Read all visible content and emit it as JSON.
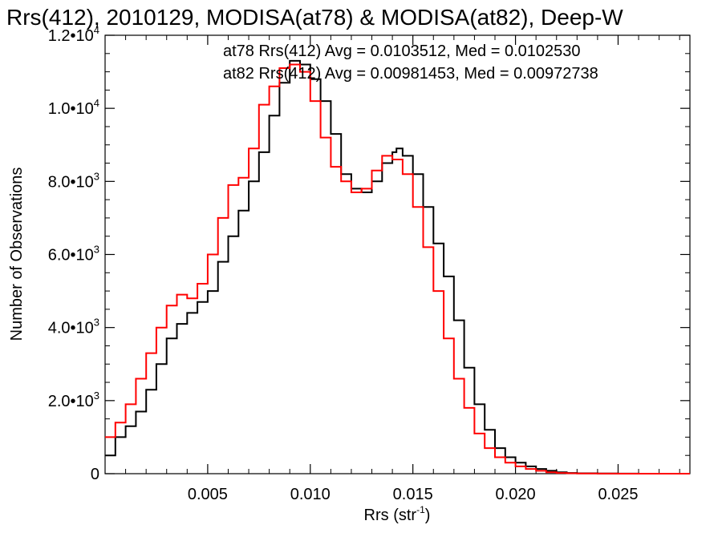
{
  "chart_data": {
    "type": "line",
    "step": true,
    "title": "Rrs(412), 2010129, MODISA(at78) & MODISA(at82), Deep-W",
    "xlabel": "Rrs (str",
    "xlabel_sup": "-1",
    "xlabel_suffix": ")",
    "ylabel": "Number of Observations",
    "xlim": [
      0.0,
      0.0285
    ],
    "ylim": [
      0,
      12000
    ],
    "x_ticks": [
      {
        "value": 0.005,
        "label": "0.005"
      },
      {
        "value": 0.01,
        "label": "0.010"
      },
      {
        "value": 0.015,
        "label": "0.015"
      },
      {
        "value": 0.02,
        "label": "0.020"
      },
      {
        "value": 0.025,
        "label": "0.025"
      }
    ],
    "y_ticks": [
      {
        "value": 0,
        "label": "0",
        "exp": ""
      },
      {
        "value": 2000,
        "label": "2.0•10",
        "exp": "3"
      },
      {
        "value": 4000,
        "label": "4.0•10",
        "exp": "3"
      },
      {
        "value": 6000,
        "label": "6.0•10",
        "exp": "3"
      },
      {
        "value": 8000,
        "label": "8.0•10",
        "exp": "3"
      },
      {
        "value": 10000,
        "label": "1.0•10",
        "exp": "4"
      },
      {
        "value": 12000,
        "label": "1.2•10",
        "exp": "4"
      }
    ],
    "annotations": [
      {
        "text": "at78 Rrs(412) Avg = 0.0103512, Med = 0.0102530",
        "color": "#000000"
      },
      {
        "text": "at82 Rrs(412) Avg = 0.00981453, Med = 0.00972738",
        "color": "#ff0000"
      }
    ],
    "series": [
      {
        "color": "#000000",
        "x": [
          0.0,
          0.0005,
          0.001,
          0.0015,
          0.002,
          0.0025,
          0.003,
          0.0035,
          0.004,
          0.0045,
          0.005,
          0.0055,
          0.006,
          0.0065,
          0.007,
          0.0075,
          0.008,
          0.0085,
          0.009,
          0.0095,
          0.01,
          0.0105,
          0.011,
          0.0115,
          0.012,
          0.0125,
          0.013,
          0.0135,
          0.014,
          0.0142,
          0.0145,
          0.015,
          0.0155,
          0.016,
          0.0165,
          0.017,
          0.0175,
          0.018,
          0.0185,
          0.019,
          0.0195,
          0.02,
          0.0205,
          0.021,
          0.0215,
          0.022,
          0.0225,
          0.023,
          0.024,
          0.025,
          0.026,
          0.027,
          0.0285
        ],
        "y": [
          500,
          1000,
          1300,
          1700,
          2300,
          3000,
          3700,
          4100,
          4400,
          4700,
          5000,
          5800,
          6500,
          7200,
          8000,
          8800,
          9800,
          10700,
          11300,
          11200,
          10800,
          10200,
          9300,
          8200,
          7800,
          7700,
          8000,
          8500,
          8800,
          8900,
          8700,
          8200,
          7300,
          6300,
          5400,
          4200,
          2900,
          1900,
          1200,
          700,
          450,
          300,
          200,
          130,
          80,
          40,
          20,
          10,
          5,
          2,
          0,
          0,
          0
        ]
      },
      {
        "color": "#ff0000",
        "x": [
          0.0,
          0.0005,
          0.001,
          0.0015,
          0.002,
          0.0025,
          0.003,
          0.0035,
          0.004,
          0.0045,
          0.005,
          0.0055,
          0.006,
          0.0065,
          0.007,
          0.0075,
          0.008,
          0.0085,
          0.009,
          0.0095,
          0.01,
          0.0105,
          0.011,
          0.0115,
          0.012,
          0.0125,
          0.013,
          0.0135,
          0.014,
          0.0145,
          0.015,
          0.0155,
          0.016,
          0.0165,
          0.017,
          0.0175,
          0.018,
          0.0185,
          0.019,
          0.0195,
          0.02,
          0.0205,
          0.021,
          0.0215,
          0.022,
          0.0225,
          0.023,
          0.024,
          0.025,
          0.026,
          0.0285
        ],
        "y": [
          1000,
          1400,
          1900,
          2600,
          3300,
          4000,
          4600,
          4900,
          4800,
          5200,
          6000,
          7000,
          7900,
          8100,
          8900,
          10100,
          10600,
          11100,
          11200,
          11000,
          10200,
          9200,
          8400,
          8000,
          7700,
          7800,
          8300,
          8700,
          8600,
          8200,
          7300,
          6200,
          5000,
          3700,
          2600,
          1800,
          1100,
          700,
          450,
          300,
          200,
          130,
          80,
          40,
          20,
          10,
          5,
          2,
          0,
          0,
          0
        ]
      }
    ]
  }
}
